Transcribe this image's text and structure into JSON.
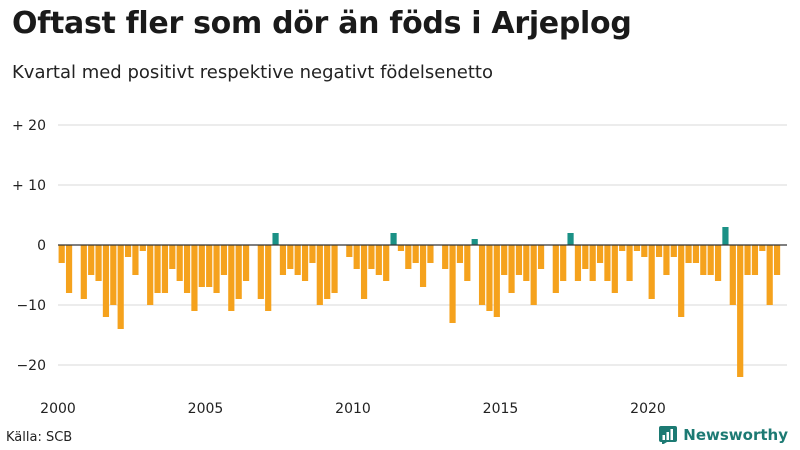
{
  "title": "Oftast fler som dör än föds i Arjeplog",
  "subtitle": "Kvartal med positivt respektive negativt födelsenetto",
  "source": "Källa: SCB",
  "brand": "Newsworthy",
  "colors": {
    "negative": "#f5a21d",
    "positive": "#1b9186",
    "grid": "#d9d9d9",
    "zero": "#333333",
    "brand": "#1c7a73"
  },
  "chart_data": {
    "type": "bar",
    "title": "Oftast fler som dör än föds i Arjeplog",
    "subtitle": "Kvartal med positivt respektive negativt födelsenetto",
    "xlabel": "",
    "ylabel": "",
    "ylim": [
      -22,
      20
    ],
    "yticks": [
      {
        "value": 20,
        "label": "+ 20"
      },
      {
        "value": 10,
        "label": "+ 10"
      },
      {
        "value": 0,
        "label": "0"
      },
      {
        "value": -10,
        "label": "−10"
      },
      {
        "value": -20,
        "label": "−20"
      }
    ],
    "xticks": [
      {
        "value": 2000,
        "label": "2000"
      },
      {
        "value": 2005,
        "label": "2005"
      },
      {
        "value": 2010,
        "label": "2010"
      },
      {
        "value": 2015,
        "label": "2015"
      },
      {
        "value": 2020,
        "label": "2020"
      }
    ],
    "start_year": 2000,
    "periods_per_year": 4,
    "values": [
      -3,
      -8,
      0,
      -9,
      -5,
      -6,
      -12,
      -10,
      -14,
      -2,
      -5,
      -1,
      -10,
      -8,
      -8,
      -4,
      -6,
      -8,
      -11,
      -7,
      -7,
      -8,
      -5,
      -11,
      -9,
      -6,
      0,
      -9,
      -11,
      2,
      -5,
      -4,
      -5,
      -6,
      -3,
      -10,
      -9,
      -8,
      0,
      -2,
      -4,
      -9,
      -4,
      -5,
      -6,
      2,
      -1,
      -4,
      -3,
      -7,
      -3,
      0,
      -4,
      -13,
      -3,
      -6,
      1,
      -10,
      -11,
      -12,
      -5,
      -8,
      -5,
      -6,
      -10,
      -4,
      0,
      -8,
      -6,
      2,
      -6,
      -4,
      -6,
      -3,
      -6,
      -8,
      -1,
      -6,
      -1,
      -2,
      -9,
      -2,
      -5,
      -2,
      -12,
      -3,
      -3,
      -5,
      -5,
      -6,
      3,
      -10,
      -22,
      -5,
      -5,
      -1,
      -10,
      -5
    ]
  }
}
